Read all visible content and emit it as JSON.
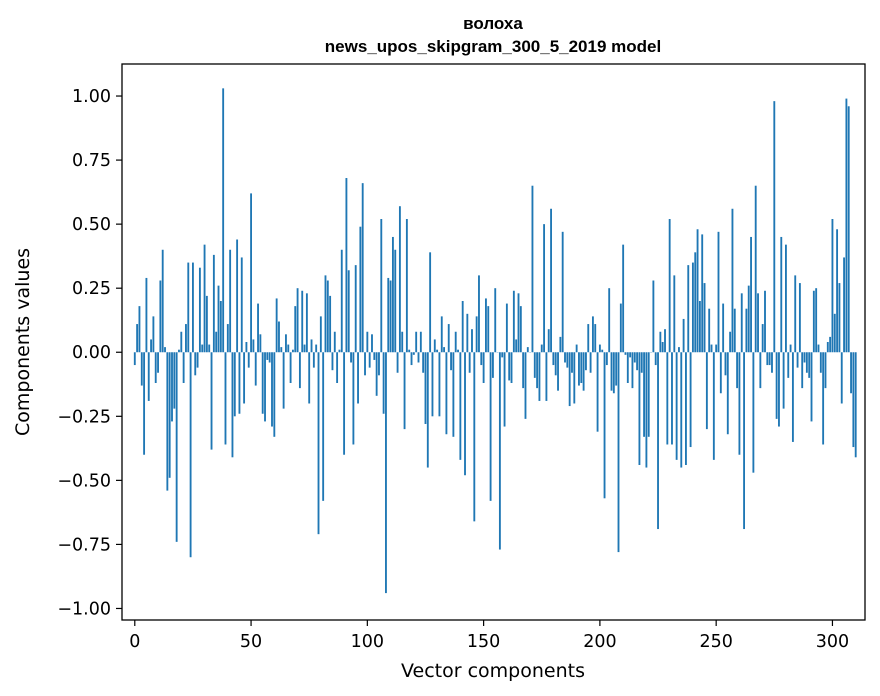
{
  "chart_data": {
    "type": "bar",
    "title": "волоха",
    "subtitle": "news_upos_skipgram_300_5_2019 model",
    "xlabel": "Vector components",
    "ylabel": "Components values",
    "xlim": [
      -5.5,
      314
    ],
    "ylim": [
      -1.045,
      1.125
    ],
    "x_ticks": [
      0,
      50,
      100,
      150,
      200,
      250,
      300
    ],
    "x_tick_labels": [
      "0",
      "50",
      "100",
      "150",
      "200",
      "250",
      "300"
    ],
    "y_ticks": [
      1.0,
      0.75,
      0.5,
      0.25,
      0.0,
      -0.25,
      -0.5,
      -0.75,
      -1.0
    ],
    "y_tick_labels": [
      "1.00",
      "0.75",
      "0.50",
      "0.25",
      "0.00",
      "−0.25",
      "−0.50",
      "−0.75",
      "−1.00"
    ],
    "bar_color": "#1f77b4",
    "series": [
      {
        "name": "волоха",
        "x_start": 0,
        "values": [
          -0.05,
          0.11,
          0.18,
          -0.13,
          -0.4,
          0.29,
          -0.19,
          0.05,
          0.14,
          -0.12,
          -0.08,
          0.28,
          0.4,
          0.02,
          -0.54,
          -0.49,
          -0.27,
          -0.22,
          -0.74,
          0.01,
          0.08,
          -0.12,
          0.11,
          0.35,
          -0.8,
          0.35,
          -0.09,
          -0.06,
          0.33,
          0.03,
          0.42,
          0.22,
          0.03,
          -0.38,
          0.38,
          0.08,
          0.26,
          0.2,
          1.03,
          -0.36,
          0.11,
          0.4,
          -0.41,
          -0.25,
          0.44,
          -0.24,
          0.37,
          -0.2,
          0.04,
          -0.06,
          0.62,
          0.05,
          -0.13,
          0.19,
          0.07,
          -0.24,
          -0.27,
          -0.03,
          -0.04,
          -0.29,
          -0.33,
          0.21,
          0.12,
          0.02,
          -0.22,
          0.07,
          0.03,
          -0.12,
          0.01,
          0.18,
          0.25,
          -0.14,
          0.24,
          0.03,
          0.23,
          -0.2,
          0.05,
          -0.06,
          0.03,
          -0.71,
          0.14,
          -0.58,
          0.3,
          0.28,
          0.22,
          -0.07,
          0.08,
          -0.12,
          0.01,
          0.4,
          -0.4,
          0.68,
          0.32,
          -0.04,
          -0.36,
          0.34,
          -0.2,
          0.49,
          0.66,
          -0.09,
          0.08,
          -0.06,
          0.07,
          -0.03,
          -0.17,
          -0.09,
          0.52,
          -0.24,
          -0.94,
          0.29,
          0.28,
          0.45,
          0.4,
          -0.08,
          0.57,
          0.08,
          -0.3,
          0.52,
          0.01,
          -0.05,
          -0.01,
          0.08,
          -0.04,
          0.08,
          -0.08,
          -0.28,
          -0.45,
          0.39,
          -0.25,
          0.05,
          0.01,
          -0.25,
          0.14,
          0.02,
          -0.32,
          0.11,
          -0.07,
          -0.33,
          0.08,
          0.01,
          -0.42,
          0.2,
          -0.48,
          0.15,
          -0.08,
          0.09,
          -0.66,
          0.14,
          0.3,
          -0.05,
          -0.12,
          0.21,
          0.18,
          -0.58,
          -0.1,
          0.25,
          0.0,
          -0.77,
          -0.02,
          -0.29,
          0.19,
          -0.11,
          -0.12,
          0.24,
          0.05,
          0.23,
          0.18,
          -0.14,
          -0.26,
          0.02,
          0.0,
          0.65,
          -0.1,
          -0.14,
          -0.19,
          0.03,
          0.5,
          -0.19,
          0.09,
          0.56,
          -0.05,
          -0.09,
          -0.15,
          0.06,
          0.47,
          -0.04,
          -0.06,
          -0.21,
          -0.08,
          -0.2,
          0.03,
          -0.13,
          -0.12,
          -0.15,
          -0.07,
          0.11,
          -0.08,
          0.14,
          0.11,
          -0.31,
          0.03,
          0.01,
          -0.57,
          -0.05,
          0.25,
          -0.15,
          -0.16,
          -0.13,
          -0.78,
          0.19,
          0.42,
          -0.01,
          -0.12,
          -0.02,
          -0.14,
          -0.04,
          -0.07,
          -0.44,
          -0.08,
          -0.33,
          -0.45,
          -0.33,
          0.0,
          0.28,
          -0.05,
          -0.69,
          0.08,
          0.04,
          0.09,
          -0.36,
          0.52,
          -0.36,
          0.3,
          -0.42,
          0.02,
          -0.45,
          0.13,
          -0.44,
          0.34,
          -0.37,
          0.35,
          0.39,
          0.48,
          0.2,
          0.46,
          0.27,
          -0.3,
          0.17,
          0.03,
          -0.42,
          0.03,
          0.47,
          -0.16,
          0.19,
          -0.09,
          -0.32,
          0.08,
          0.56,
          0.17,
          -0.14,
          -0.4,
          0.23,
          -0.69,
          0.17,
          0.26,
          0.45,
          -0.47,
          0.65,
          0.23,
          -0.14,
          0.11,
          0.24,
          -0.05,
          -0.05,
          -0.08,
          0.98,
          -0.26,
          -0.29,
          0.45,
          -0.22,
          0.42,
          -0.1,
          0.03,
          -0.35,
          0.3,
          -0.06,
          0.27,
          -0.14,
          -0.04,
          -0.08,
          -0.1,
          -0.27,
          0.24,
          0.25,
          0.03,
          -0.08,
          -0.36,
          -0.14,
          0.04,
          0.06,
          0.52,
          0.15,
          0.48,
          0.27,
          -0.2,
          0.37,
          0.99,
          0.96,
          -0.16,
          -0.37,
          -0.41
        ]
      }
    ]
  }
}
